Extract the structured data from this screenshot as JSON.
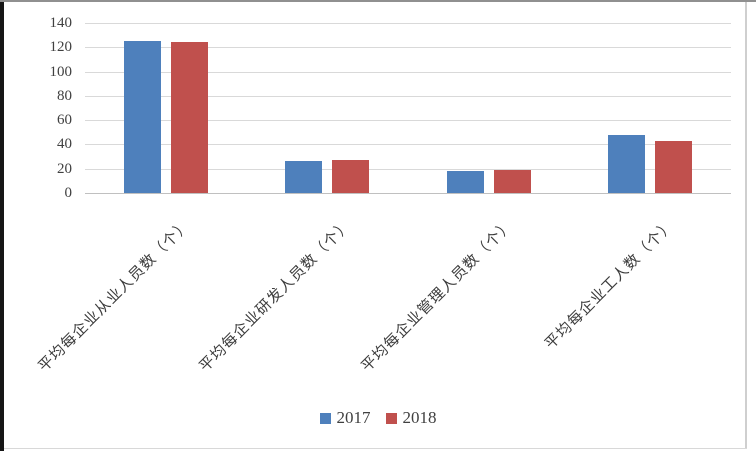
{
  "chart_data": {
    "type": "bar",
    "title": "",
    "categories": [
      "平均每企业从业人员数（个）",
      "平均每企业研发人员数（个）",
      "平均每企业管理人员数（个）",
      "平均每企业工人数（个）"
    ],
    "series": [
      {
        "name": "2017",
        "color": "#4E80BC",
        "values": [
          125,
          26,
          18,
          48
        ]
      },
      {
        "name": "2018",
        "color": "#C0504D",
        "values": [
          124,
          27,
          19,
          43
        ]
      }
    ],
    "ylim": [
      0,
      140
    ],
    "yticks": [
      0,
      20,
      40,
      60,
      80,
      100,
      120,
      140
    ],
    "grid": true,
    "legend_position": "bottom",
    "gridline_color": "#d9d9d9",
    "axis_line_color": "#c0c0c0",
    "tick_label_color": "#404040"
  }
}
